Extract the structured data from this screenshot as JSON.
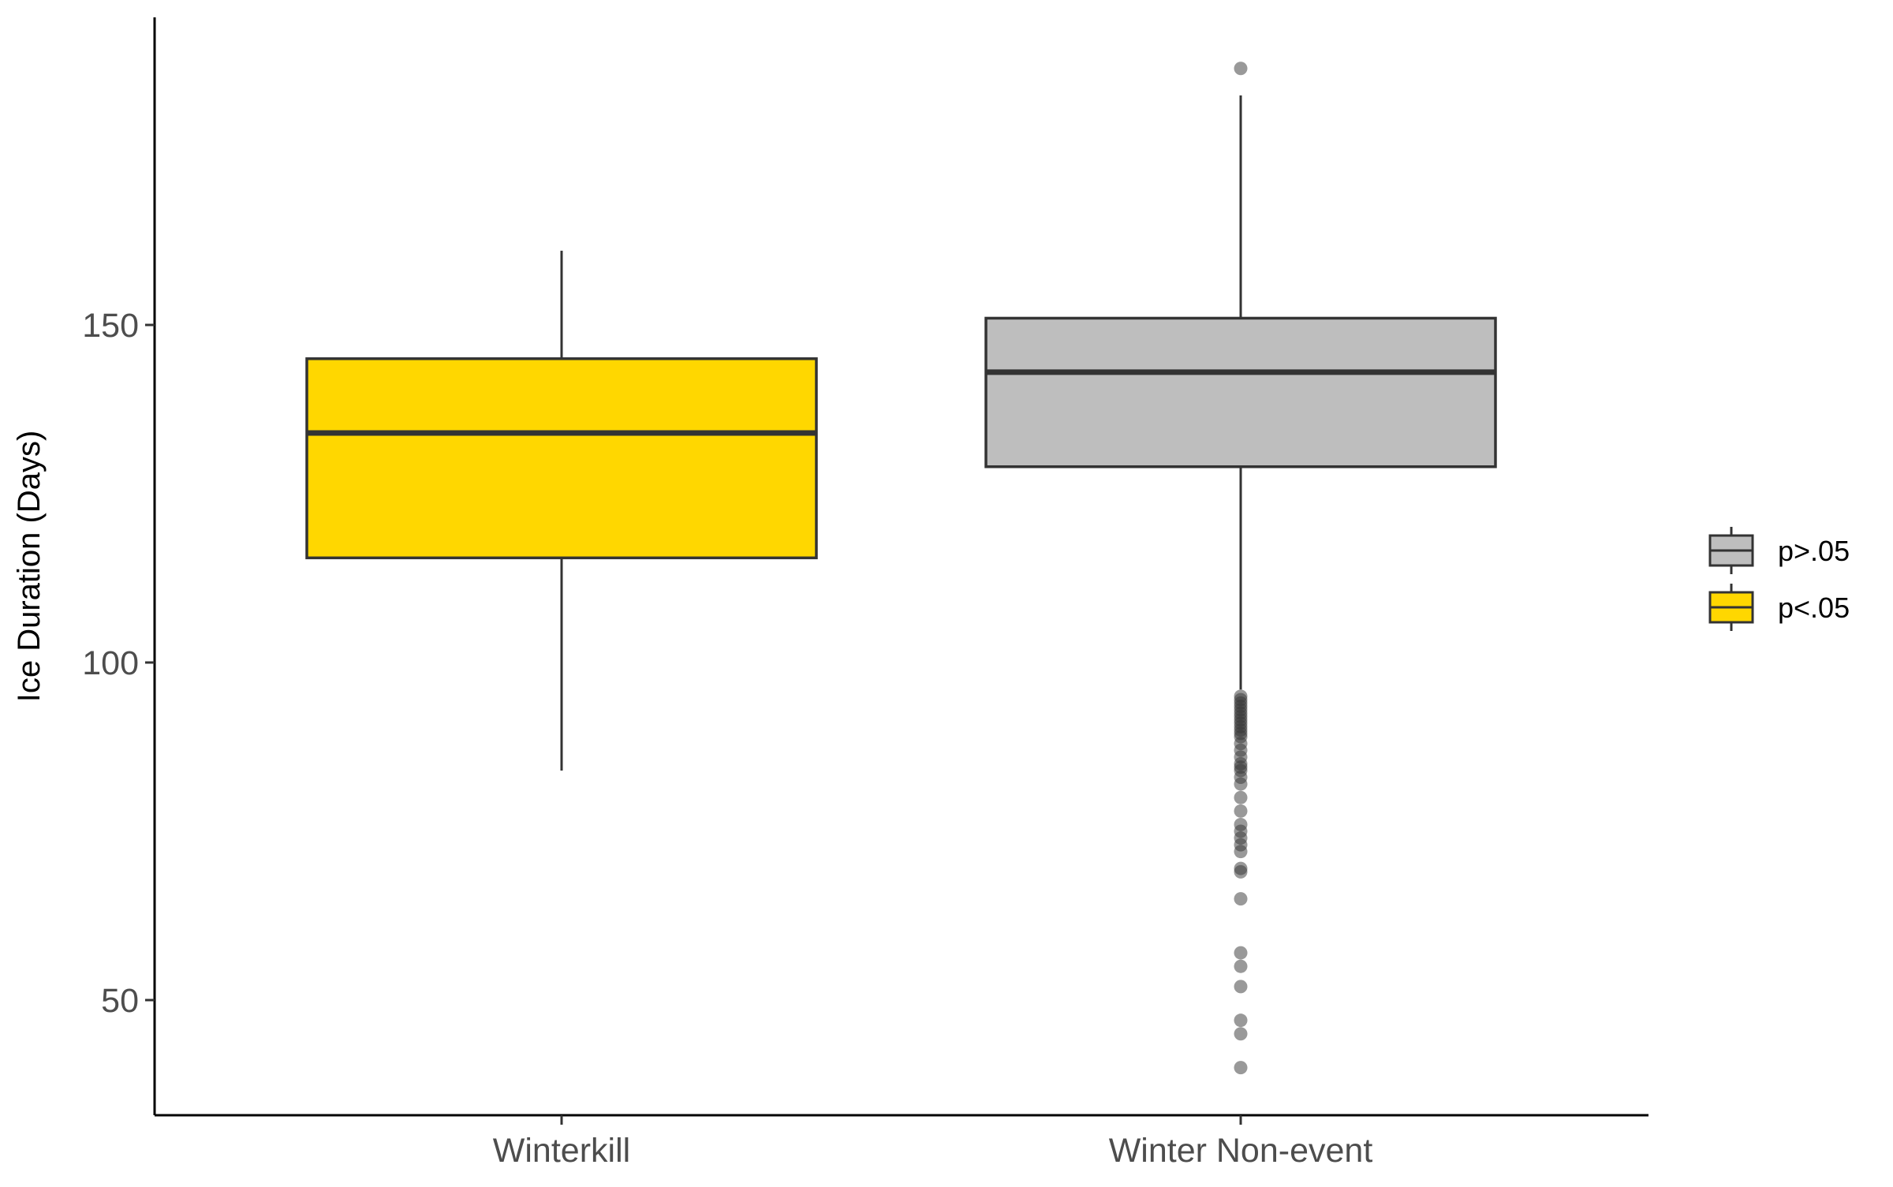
{
  "chart_data": {
    "type": "boxplot",
    "title": "",
    "xlabel": "",
    "ylabel": "Ice Duration (Days)",
    "ylim": [
      33,
      195
    ],
    "yticks": [
      50,
      100,
      150
    ],
    "grid": false,
    "legend_position": "right",
    "categories": [
      "Winterkill",
      "Winter Non-event"
    ],
    "boxes": [
      {
        "category": "Winterkill",
        "group": "p<.05",
        "color": "#FFD700",
        "whisker_low": 84,
        "q1": 115.5,
        "median": 134,
        "q3": 145,
        "whisker_high": 161,
        "outliers": []
      },
      {
        "category": "Winter Non-event",
        "group": "p>.05",
        "color": "#BEBEBE",
        "whisker_low": 96,
        "q1": 129,
        "median": 143,
        "q3": 151,
        "whisker_high": 184,
        "outliers": [
          188,
          95,
          94.5,
          94,
          93.5,
          93,
          92.5,
          92,
          91.5,
          91,
          90.5,
          90,
          89.5,
          89,
          88,
          87,
          86,
          85,
          84.5,
          84,
          83,
          82,
          80,
          78,
          76,
          75,
          74,
          73,
          72,
          69.5,
          69,
          65,
          57,
          55,
          52,
          47,
          45,
          40
        ]
      }
    ],
    "legend": [
      {
        "label": "p>.05",
        "color": "#BEBEBE"
      },
      {
        "label": "p<.05",
        "color": "#FFD700"
      }
    ]
  }
}
